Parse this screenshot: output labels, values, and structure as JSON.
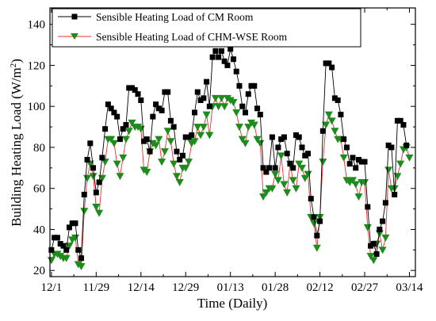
{
  "chart_data": {
    "type": "line",
    "title": "",
    "xlabel": "Time (Daily)",
    "ylabel_main": "Building Heating Load (W/m",
    "ylabel_sup": "2",
    "ylabel_close": ")",
    "x_tick_labels": [
      "12/1",
      "11/29",
      "12/14",
      "12/29",
      "01/13",
      "01/28",
      "02/12",
      "02/27",
      "03/14"
    ],
    "x_tick_days": [
      0,
      15,
      30,
      45,
      60,
      75,
      90,
      105,
      120
    ],
    "xlim": [
      -0.5,
      122
    ],
    "ylim": [
      17,
      148
    ],
    "y_ticks": [
      20,
      40,
      60,
      80,
      100,
      120,
      140
    ],
    "grid": false,
    "legend_position": "top-left",
    "series": [
      {
        "name": "Sensible  Heating Load of CM Room",
        "color": "#000000",
        "line_color": "#000000",
        "marker": "square",
        "x": [
          0,
          1,
          2,
          3,
          4,
          5,
          6,
          7,
          8,
          9,
          10,
          11,
          12,
          13,
          14,
          15,
          16,
          17,
          18,
          19,
          20,
          21,
          22,
          23,
          24,
          25,
          26,
          27,
          28,
          29,
          30,
          31,
          32,
          33,
          34,
          35,
          36,
          37,
          38,
          39,
          40,
          41,
          42,
          43,
          44,
          45,
          46,
          47,
          48,
          49,
          50,
          51,
          52,
          53,
          54,
          55,
          56,
          57,
          58,
          59,
          60,
          61,
          62,
          63,
          64,
          65,
          66,
          67,
          68,
          69,
          70,
          71,
          72,
          73,
          74,
          75,
          76,
          77,
          78,
          79,
          80,
          81,
          82,
          83,
          84,
          85,
          86,
          87,
          88,
          89,
          90,
          91,
          92,
          93,
          94,
          95,
          96,
          97,
          98,
          99,
          100,
          101,
          102,
          103,
          104,
          105,
          106,
          107,
          108,
          109,
          110,
          111,
          112,
          113,
          114,
          115,
          116,
          117,
          118,
          119
        ],
        "values": [
          30,
          36,
          36,
          33,
          32,
          30,
          41,
          43,
          43,
          30,
          26,
          57,
          74,
          82,
          70,
          58,
          63,
          75,
          89,
          101,
          99,
          97,
          95,
          84,
          89,
          91,
          109,
          109,
          108,
          106,
          103,
          83,
          84,
          78,
          95,
          101,
          99,
          98,
          107,
          107,
          93,
          90,
          78,
          74,
          76,
          85,
          85,
          86,
          97,
          107,
          103,
          104,
          112,
          100,
          124,
          127,
          124,
          127,
          122,
          120,
          128,
          123,
          117,
          110,
          100,
          97,
          106,
          110,
          110,
          99,
          96,
          70,
          68,
          70,
          85,
          70,
          80,
          84,
          85,
          77,
          72,
          70,
          86,
          85,
          80,
          76,
          77,
          55,
          46,
          37,
          44,
          88,
          121,
          121,
          119,
          104,
          103,
          96,
          84,
          80,
          72,
          75,
          70,
          74,
          73,
          73,
          51,
          32,
          33,
          28,
          40,
          44,
          53,
          81,
          80,
          57,
          93,
          93,
          91,
          81
        ]
      },
      {
        "name": "Sensible  Heating Load of CHM-WSE Room",
        "color": "#1c8c1c",
        "line_color": "#e83030",
        "marker": "triangle-down",
        "x": [
          0,
          1,
          2,
          3,
          4,
          5,
          6,
          7,
          8,
          9,
          10,
          11,
          12,
          13,
          14,
          15,
          16,
          17,
          18,
          19,
          20,
          21,
          22,
          23,
          24,
          25,
          26,
          27,
          28,
          29,
          30,
          31,
          32,
          33,
          34,
          35,
          36,
          37,
          38,
          39,
          40,
          41,
          42,
          43,
          44,
          45,
          46,
          47,
          48,
          49,
          50,
          51,
          52,
          53,
          54,
          55,
          56,
          57,
          58,
          59,
          60,
          61,
          62,
          63,
          64,
          65,
          66,
          67,
          68,
          69,
          70,
          71,
          72,
          73,
          74,
          75,
          76,
          77,
          78,
          79,
          80,
          81,
          82,
          83,
          84,
          85,
          86,
          87,
          88,
          89,
          90,
          91,
          92,
          93,
          94,
          95,
          96,
          97,
          98,
          99,
          100,
          101,
          102,
          103,
          104,
          105,
          106,
          107,
          108,
          109,
          110,
          111,
          112,
          113,
          114,
          115,
          116,
          117,
          118,
          119,
          120
        ],
        "values": [
          25,
          28,
          28,
          27,
          26,
          26,
          32,
          35,
          36,
          23,
          22,
          49,
          65,
          72,
          66,
          51,
          48,
          65,
          73,
          84,
          84,
          82,
          72,
          66,
          75,
          84,
          88,
          92,
          90,
          90,
          89,
          69,
          68,
          78,
          82,
          81,
          84,
          73,
          78,
          88,
          83,
          72,
          66,
          63,
          70,
          70,
          73,
          82,
          83,
          90,
          86,
          90,
          96,
          86,
          100,
          104,
          100,
          104,
          100,
          104,
          103,
          102,
          97,
          90,
          84,
          82,
          90,
          92,
          91,
          84,
          82,
          56,
          58,
          60,
          60,
          67,
          64,
          76,
          62,
          58,
          72,
          64,
          60,
          72,
          70,
          65,
          67,
          46,
          43,
          31,
          46,
          73,
          91,
          96,
          93,
          88,
          84,
          84,
          75,
          64,
          63,
          64,
          62,
          56,
          63,
          63,
          41,
          27,
          25,
          33,
          38,
          30,
          36,
          69,
          60,
          60,
          66,
          72,
          79,
          80,
          75
        ]
      }
    ]
  }
}
